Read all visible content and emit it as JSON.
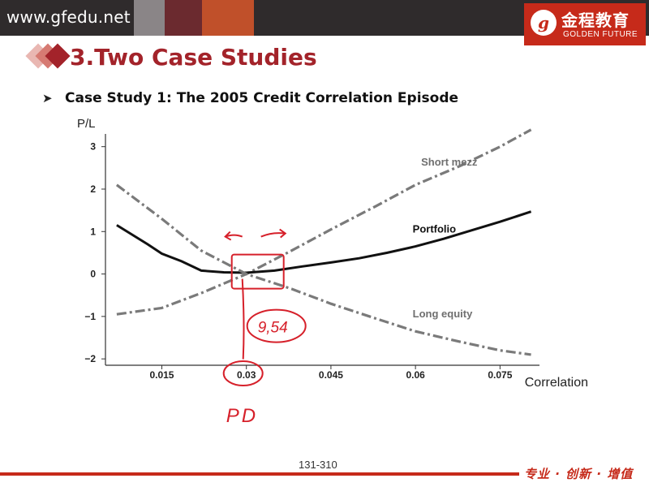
{
  "header": {
    "site_url": "www.gfedu.net",
    "logo_cn": "金程教育",
    "logo_en": "GOLDEN FUTURE",
    "colors": {
      "bar": "#2f2b2c",
      "accent": "#c62a1a",
      "title": "#a3232a"
    }
  },
  "slide": {
    "title": "3.Two Case Studies",
    "subtitle": "Case Study 1: The 2005 Credit Correlation Episode",
    "page_number": "131-310",
    "slogan": "专业 · 创新 · 增值"
  },
  "chart_data": {
    "type": "line",
    "title": "",
    "xlabel": "Correlation",
    "ylabel": "P/L",
    "xlim": [
      0.005,
      0.082
    ],
    "ylim": [
      -2.15,
      3.3
    ],
    "xticks": [
      0.015,
      0.03,
      0.045,
      0.06,
      0.075
    ],
    "xtick_labels": [
      "0.015",
      "0.03",
      "0.045",
      "0.06",
      "0.075"
    ],
    "yticks": [
      -2,
      -1,
      0,
      1,
      2,
      3
    ],
    "ytick_labels": [
      "−2",
      "−1",
      "0",
      "1",
      "2",
      "3"
    ],
    "grid": false,
    "series": [
      {
        "name": "Short mezz",
        "style": "dashdot",
        "color": "#7a7a7a",
        "x": [
          0.007,
          0.015,
          0.022,
          0.03,
          0.038,
          0.045,
          0.053,
          0.06,
          0.068,
          0.075,
          0.0805
        ],
        "y": [
          -0.95,
          -0.8,
          -0.45,
          0.0,
          0.55,
          1.05,
          1.6,
          2.1,
          2.55,
          3.0,
          3.4
        ]
      },
      {
        "name": "Portfolio",
        "style": "solid",
        "color": "#111111",
        "x": [
          0.007,
          0.0125,
          0.015,
          0.0185,
          0.022,
          0.026,
          0.03,
          0.035,
          0.04,
          0.045,
          0.05,
          0.055,
          0.06,
          0.065,
          0.07,
          0.075,
          0.0805
        ],
        "y": [
          1.15,
          0.7,
          0.48,
          0.3,
          0.08,
          0.04,
          0.03,
          0.08,
          0.18,
          0.27,
          0.37,
          0.5,
          0.65,
          0.83,
          1.03,
          1.23,
          1.47
        ]
      },
      {
        "name": "Long equity",
        "style": "dashdot",
        "color": "#7a7a7a",
        "x": [
          0.007,
          0.015,
          0.022,
          0.03,
          0.038,
          0.045,
          0.053,
          0.06,
          0.068,
          0.075,
          0.0805
        ],
        "y": [
          2.1,
          1.3,
          0.55,
          0.0,
          -0.35,
          -0.7,
          -1.05,
          -1.35,
          -1.6,
          -1.8,
          -1.9
        ]
      }
    ],
    "annotations": [
      {
        "text": "Short mezz",
        "x": 0.061,
        "y": 2.55
      },
      {
        "text": "Portfolio",
        "x": 0.0595,
        "y": 0.98
      },
      {
        "text": "Long equity",
        "x": 0.0595,
        "y": -1.02
      }
    ],
    "handwriting": {
      "color": "#d6202a",
      "note": "9,54",
      "letters": "PD"
    }
  }
}
